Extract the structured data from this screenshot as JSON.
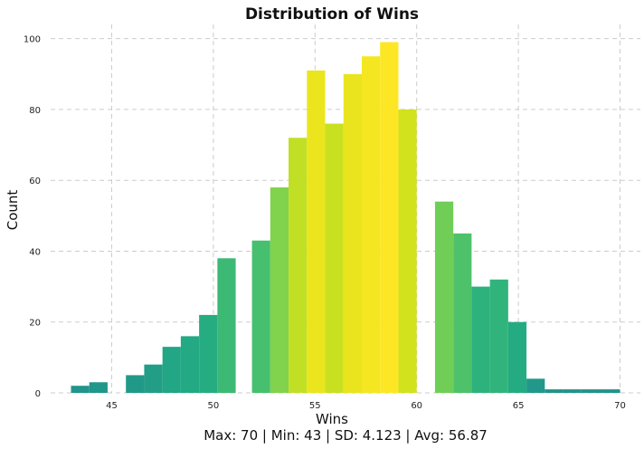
{
  "chart_data": {
    "type": "bar",
    "title": "Distribution of Wins",
    "xlabel": "Wins",
    "ylabel": "Count",
    "subtitle": "Max: 70 | Min: 43 | SD: 4.123 | Avg: 56.87",
    "xlim": [
      42,
      71
    ],
    "ylim": [
      0,
      104
    ],
    "xticks": [
      45,
      50,
      55,
      60,
      65,
      70
    ],
    "yticks": [
      0,
      20,
      40,
      60,
      80,
      100
    ],
    "grid": true,
    "bins": [
      {
        "start": 43.0,
        "end": 43.9,
        "count": 2
      },
      {
        "start": 43.9,
        "end": 44.8,
        "count": 3
      },
      {
        "start": 45.7,
        "end": 46.6,
        "count": 5
      },
      {
        "start": 46.6,
        "end": 47.5,
        "count": 8
      },
      {
        "start": 47.5,
        "end": 48.4,
        "count": 13
      },
      {
        "start": 48.4,
        "end": 49.3,
        "count": 16
      },
      {
        "start": 49.3,
        "end": 50.2,
        "count": 22
      },
      {
        "start": 50.2,
        "end": 51.1,
        "count": 38
      },
      {
        "start": 51.9,
        "end": 52.8,
        "count": 43
      },
      {
        "start": 52.8,
        "end": 53.7,
        "count": 58
      },
      {
        "start": 53.7,
        "end": 54.6,
        "count": 72
      },
      {
        "start": 54.6,
        "end": 55.5,
        "count": 91
      },
      {
        "start": 55.5,
        "end": 56.4,
        "count": 76
      },
      {
        "start": 56.4,
        "end": 57.3,
        "count": 90
      },
      {
        "start": 57.3,
        "end": 58.2,
        "count": 95
      },
      {
        "start": 58.2,
        "end": 59.1,
        "count": 99
      },
      {
        "start": 59.1,
        "end": 60.0,
        "count": 80
      },
      {
        "start": 60.9,
        "end": 61.8,
        "count": 54
      },
      {
        "start": 61.8,
        "end": 62.7,
        "count": 45
      },
      {
        "start": 62.7,
        "end": 63.6,
        "count": 30
      },
      {
        "start": 63.6,
        "end": 64.5,
        "count": 32
      },
      {
        "start": 64.5,
        "end": 65.4,
        "count": 20
      },
      {
        "start": 65.4,
        "end": 66.3,
        "count": 4
      },
      {
        "start": 66.3,
        "end": 67.2,
        "count": 1
      },
      {
        "start": 67.2,
        "end": 68.1,
        "count": 1
      },
      {
        "start": 68.1,
        "end": 69.0,
        "count": 1
      },
      {
        "start": 69.0,
        "end": 70.0,
        "count": 1
      }
    ],
    "colormap": [
      "#21918c",
      "#22a884",
      "#2ab07f",
      "#44bf70",
      "#7ad151",
      "#bddf26",
      "#dde318",
      "#fde725"
    ]
  }
}
